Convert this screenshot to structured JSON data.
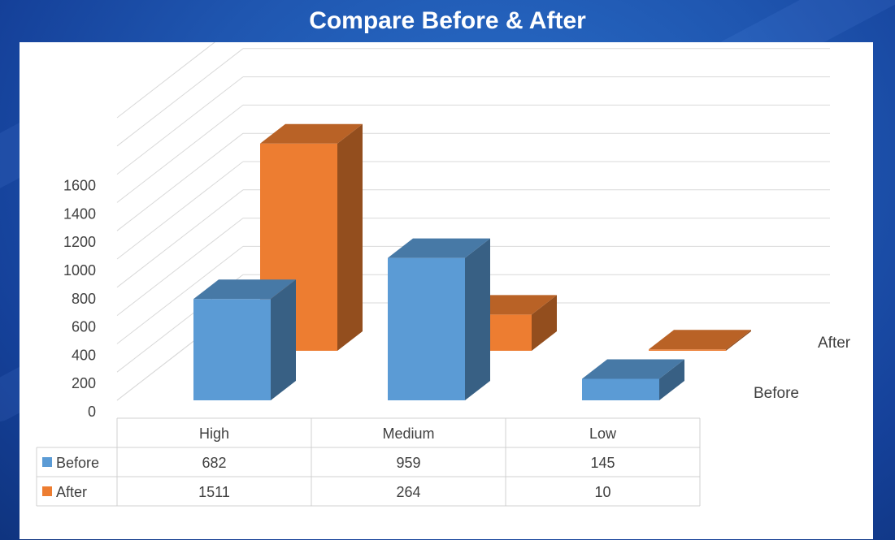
{
  "title": "Compare Before & After",
  "chart_data": {
    "type": "bar",
    "subtype": "3d-column-with-data-table",
    "title": "Compare Before & After",
    "categories": [
      "High",
      "Medium",
      "Low"
    ],
    "series": [
      {
        "name": "Before",
        "values": [
          682,
          959,
          145
        ],
        "color": "#5b9bd5"
      },
      {
        "name": "After",
        "values": [
          1511,
          264,
          10
        ],
        "color": "#ed7d31"
      }
    ],
    "ylim": [
      0,
      1600
    ],
    "yticks": [
      "0",
      "200",
      "400",
      "600",
      "800",
      "1000",
      "1200",
      "1400",
      "1600"
    ],
    "depth_labels": [
      "Before",
      "After"
    ],
    "grid": true,
    "legend": "data-table",
    "data_table": {
      "headers": [
        "High",
        "Medium",
        "Low"
      ],
      "rows": [
        {
          "label": "Before",
          "values": [
            "682",
            "959",
            "145"
          ]
        },
        {
          "label": "After",
          "values": [
            "1511",
            "264",
            "10"
          ]
        }
      ]
    }
  }
}
